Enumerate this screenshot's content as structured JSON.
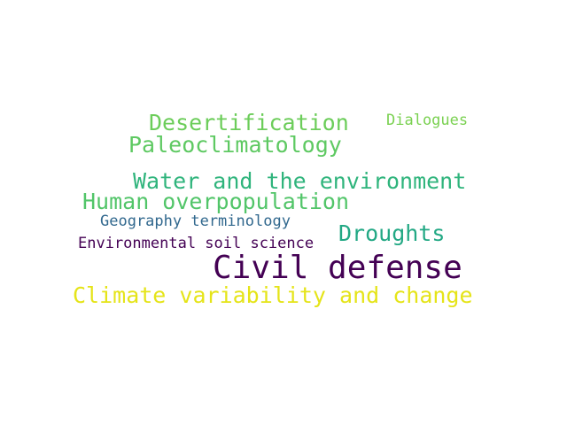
{
  "words": [
    {
      "text": "Desertification",
      "color": "#6ccd5a"
    },
    {
      "text": "Dialogues",
      "color": "#7ad151"
    },
    {
      "text": "Paleoclimatology",
      "color": "#5ec962"
    },
    {
      "text": "Water and the environment",
      "color": "#2fb47c"
    },
    {
      "text": "Human overpopulation",
      "color": "#52c569"
    },
    {
      "text": "Geography terminology",
      "color": "#31688e"
    },
    {
      "text": "Droughts",
      "color": "#22a884"
    },
    {
      "text": "Environmental soil science",
      "color": "#440154"
    },
    {
      "text": "Civil defense",
      "color": "#440154"
    },
    {
      "text": "Climate variability and change",
      "color": "#e5e419"
    }
  ]
}
